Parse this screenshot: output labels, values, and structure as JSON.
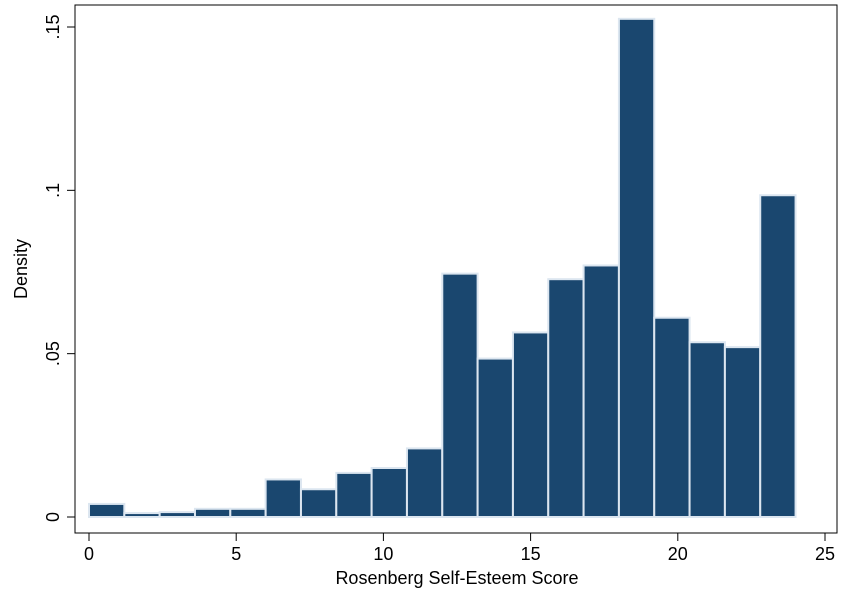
{
  "chart_data": {
    "type": "bar",
    "title": "",
    "xlabel": "Rosenberg Self-Esteem Score",
    "ylabel": "Density",
    "xlim": [
      0,
      25
    ],
    "ylim": [
      0,
      0.15
    ],
    "xticks": [
      0,
      5,
      10,
      15,
      20,
      25
    ],
    "xtick_labels": [
      "0",
      "5",
      "10",
      "15",
      "20",
      "25"
    ],
    "yticks": [
      0,
      0.05,
      0.1,
      0.15
    ],
    "ytick_labels": [
      "0",
      ".05",
      ".1",
      ".15"
    ],
    "grid": false,
    "legend": "none",
    "bin_width": 1.2,
    "bins": [
      {
        "start": 0.0,
        "end": 1.2,
        "value": 0.004
      },
      {
        "start": 1.2,
        "end": 2.4,
        "value": 0.0012
      },
      {
        "start": 2.4,
        "end": 3.6,
        "value": 0.0015
      },
      {
        "start": 3.6,
        "end": 4.8,
        "value": 0.0025
      },
      {
        "start": 4.8,
        "end": 6.0,
        "value": 0.0025
      },
      {
        "start": 6.0,
        "end": 7.2,
        "value": 0.0115
      },
      {
        "start": 7.2,
        "end": 8.4,
        "value": 0.0085
      },
      {
        "start": 8.4,
        "end": 9.6,
        "value": 0.0135
      },
      {
        "start": 9.6,
        "end": 10.8,
        "value": 0.015
      },
      {
        "start": 10.8,
        "end": 12.0,
        "value": 0.021
      },
      {
        "start": 12.0,
        "end": 13.2,
        "value": 0.0745
      },
      {
        "start": 13.2,
        "end": 14.4,
        "value": 0.0485
      },
      {
        "start": 14.4,
        "end": 15.6,
        "value": 0.0565
      },
      {
        "start": 15.6,
        "end": 16.8,
        "value": 0.0728
      },
      {
        "start": 16.8,
        "end": 18.0,
        "value": 0.077
      },
      {
        "start": 18.0,
        "end": 19.2,
        "value": 0.1525
      },
      {
        "start": 19.2,
        "end": 20.4,
        "value": 0.061
      },
      {
        "start": 20.4,
        "end": 21.6,
        "value": 0.0535
      },
      {
        "start": 21.6,
        "end": 22.8,
        "value": 0.052
      },
      {
        "start": 22.8,
        "end": 24.0,
        "value": 0.0985
      }
    ],
    "colors": {
      "bar_fill": "#1a476f",
      "bar_outline": "#dce6f0",
      "axis": "#000000"
    }
  }
}
